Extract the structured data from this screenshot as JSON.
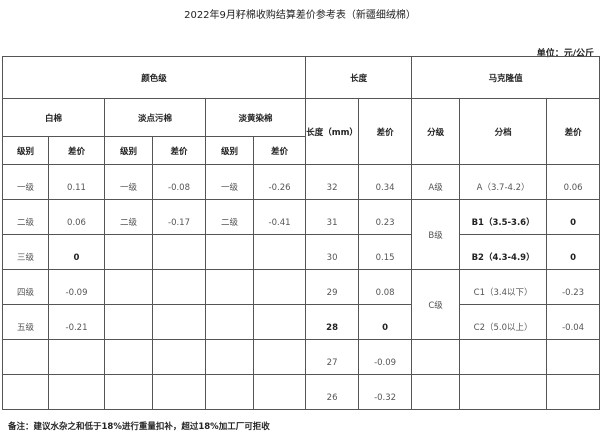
{
  "title": "2022年9月籽棉收购结算差价参考表（新疆细绒棉）",
  "unit": "单位：元/公斤",
  "headers": {
    "color_grade": "颜色级",
    "length": "长度",
    "micronaire": "马克隆值",
    "white": "白棉",
    "light_spotted": "淡点污棉",
    "light_yellow": "淡黄染棉",
    "grade": "级别",
    "diff": "差价",
    "length_mm": "长度（mm）",
    "class": "分级",
    "range": "分档"
  },
  "color_rows": [
    {
      "w_grade": "一级",
      "w_diff": "0.11",
      "s_grade": "一级",
      "s_diff": "-0.08",
      "y_grade": "一级",
      "y_diff": "-0.26"
    },
    {
      "w_grade": "二级",
      "w_diff": "0.06",
      "s_grade": "二级",
      "s_diff": "-0.17",
      "y_grade": "二级",
      "y_diff": "-0.41"
    },
    {
      "w_grade": "三级",
      "w_diff": "0"
    },
    {
      "w_grade": "四级",
      "w_diff": "-0.09"
    },
    {
      "w_grade": "五级",
      "w_diff": "-0.21"
    }
  ],
  "length_rows": [
    {
      "len": "32",
      "diff": "0.34"
    },
    {
      "len": "31",
      "diff": "0.23"
    },
    {
      "len": "30",
      "diff": "0.15"
    },
    {
      "len": "29",
      "diff": "0.08"
    },
    {
      "len": "28",
      "diff": "0"
    },
    {
      "len": "27",
      "diff": "-0.09"
    },
    {
      "len": "26",
      "diff": "-0.32"
    }
  ],
  "micronaire": {
    "A": "A级",
    "B": "B级",
    "C": "C级",
    "rows": [
      {
        "range": "A（3.7-4.2）",
        "diff": "0.06"
      },
      {
        "range": "B1（3.5-3.6）",
        "diff": "0"
      },
      {
        "range": "B2（4.3-4.9）",
        "diff": "0"
      },
      {
        "range": "C1（3.4以下）",
        "diff": "-0.23"
      },
      {
        "range": "C2（5.0以上）",
        "diff": "-0.04"
      }
    ]
  },
  "note": "备注：建议水杂之和低于18%进行重量扣补，超过18%加工厂可拒收"
}
